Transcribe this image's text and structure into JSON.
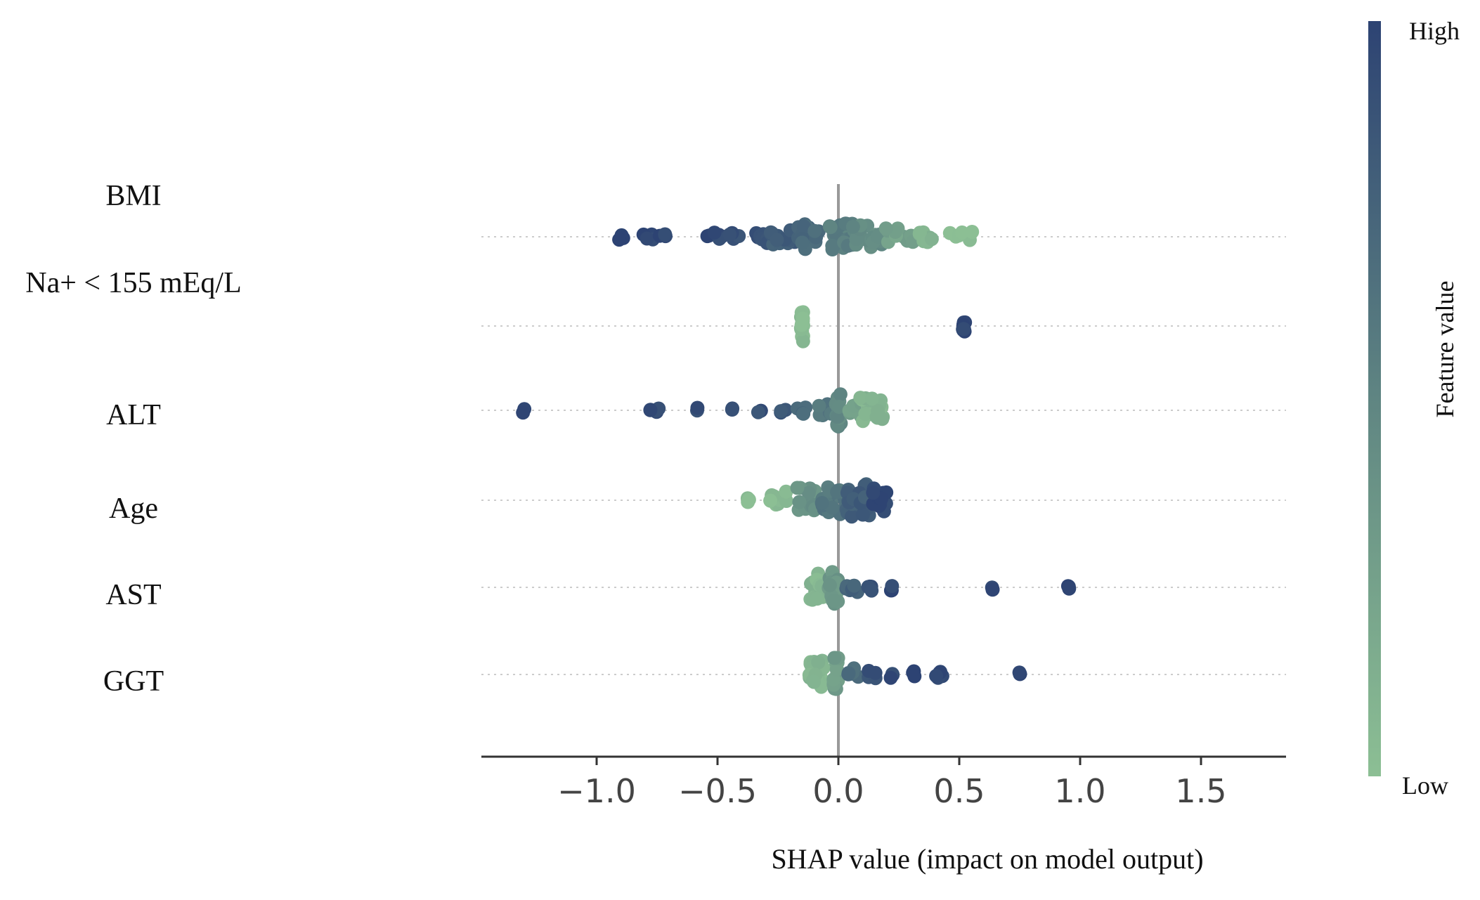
{
  "chart_data": {
    "type": "scatter",
    "subtype": "shap-beeswarm",
    "xlabel": "SHAP value (impact on model output)",
    "xlim": [
      -1.5,
      1.85
    ],
    "xticks": [
      -1.0,
      -0.5,
      0.0,
      0.5,
      1.0,
      1.5
    ],
    "xtick_labels": [
      "−1.0",
      "−0.5",
      "0.0",
      "0.5",
      "1.0",
      "1.5"
    ],
    "features": [
      {
        "name": "BMI",
        "clusters": [
          {
            "x": -0.9,
            "n": 3,
            "spread": 0.03,
            "w": 0.01,
            "value": 0.98
          },
          {
            "x": -0.79,
            "n": 5,
            "spread": 0.03,
            "w": 0.03,
            "value": 0.97
          },
          {
            "x": -0.73,
            "n": 3,
            "spread": 0.03,
            "w": 0.02,
            "value": 0.96
          },
          {
            "x": -0.52,
            "n": 6,
            "spread": 0.04,
            "w": 0.04,
            "value": 0.95
          },
          {
            "x": -0.43,
            "n": 5,
            "spread": 0.04,
            "w": 0.02,
            "value": 0.92
          },
          {
            "x": -0.33,
            "n": 10,
            "spread": 0.05,
            "w": 0.06,
            "value": 0.88
          },
          {
            "x": -0.22,
            "n": 14,
            "spread": 0.07,
            "w": 0.06,
            "value": 0.8
          },
          {
            "x": -0.12,
            "n": 18,
            "spread": 0.1,
            "w": 0.06,
            "value": 0.7
          },
          {
            "x": 0.0,
            "n": 24,
            "spread": 0.11,
            "w": 0.06,
            "value": 0.55
          },
          {
            "x": 0.12,
            "n": 18,
            "spread": 0.1,
            "w": 0.06,
            "value": 0.45
          },
          {
            "x": 0.25,
            "n": 12,
            "spread": 0.07,
            "w": 0.06,
            "value": 0.25
          },
          {
            "x": 0.37,
            "n": 8,
            "spread": 0.05,
            "w": 0.04,
            "value": 0.12
          },
          {
            "x": 0.52,
            "n": 6,
            "spread": 0.04,
            "w": 0.06,
            "value": 0.02
          }
        ]
      },
      {
        "name": "Na+ < 155 mEq/L",
        "clusters": [
          {
            "x": -0.15,
            "n": 18,
            "spread": 0.13,
            "w": 0.005,
            "value": 0.02
          },
          {
            "x": 0.52,
            "n": 8,
            "spread": 0.05,
            "w": 0.005,
            "value": 0.98
          }
        ]
      },
      {
        "name": "ALT",
        "clusters": [
          {
            "x": -1.3,
            "n": 2,
            "spread": 0.02,
            "w": 0.005,
            "value": 0.98
          },
          {
            "x": -0.77,
            "n": 5,
            "spread": 0.02,
            "w": 0.03,
            "value": 0.96
          },
          {
            "x": -0.59,
            "n": 2,
            "spread": 0.02,
            "w": 0.01,
            "value": 0.94
          },
          {
            "x": -0.43,
            "n": 2,
            "spread": 0.02,
            "w": 0.01,
            "value": 0.92
          },
          {
            "x": -0.33,
            "n": 2,
            "spread": 0.02,
            "w": 0.01,
            "value": 0.9
          },
          {
            "x": -0.23,
            "n": 3,
            "spread": 0.03,
            "w": 0.02,
            "value": 0.85
          },
          {
            "x": -0.15,
            "n": 5,
            "spread": 0.04,
            "w": 0.02,
            "value": 0.72
          },
          {
            "x": -0.06,
            "n": 8,
            "spread": 0.05,
            "w": 0.03,
            "value": 0.6
          },
          {
            "x": 0.0,
            "n": 18,
            "spread": 0.13,
            "w": 0.01,
            "value": 0.45
          },
          {
            "x": 0.07,
            "n": 10,
            "spread": 0.06,
            "w": 0.03,
            "value": 0.25
          },
          {
            "x": 0.14,
            "n": 20,
            "spread": 0.1,
            "w": 0.05,
            "value": 0.08
          }
        ]
      },
      {
        "name": "Age",
        "clusters": [
          {
            "x": -0.37,
            "n": 3,
            "spread": 0.02,
            "w": 0.01,
            "value": 0.02
          },
          {
            "x": -0.25,
            "n": 10,
            "spread": 0.08,
            "w": 0.04,
            "value": 0.06
          },
          {
            "x": -0.12,
            "n": 16,
            "spread": 0.1,
            "w": 0.05,
            "value": 0.4
          },
          {
            "x": -0.02,
            "n": 22,
            "spread": 0.12,
            "w": 0.05,
            "value": 0.6
          },
          {
            "x": 0.08,
            "n": 24,
            "spread": 0.13,
            "w": 0.05,
            "value": 0.8
          },
          {
            "x": 0.17,
            "n": 14,
            "spread": 0.1,
            "w": 0.03,
            "value": 0.97
          }
        ]
      },
      {
        "name": "AST",
        "clusters": [
          {
            "x": -0.09,
            "n": 22,
            "spread": 0.11,
            "w": 0.03,
            "value": 0.08
          },
          {
            "x": -0.02,
            "n": 18,
            "spread": 0.14,
            "w": 0.02,
            "value": 0.35
          },
          {
            "x": 0.06,
            "n": 6,
            "spread": 0.05,
            "w": 0.03,
            "value": 0.75
          },
          {
            "x": 0.13,
            "n": 4,
            "spread": 0.03,
            "w": 0.01,
            "value": 0.93
          },
          {
            "x": 0.22,
            "n": 3,
            "spread": 0.03,
            "w": 0.005,
            "value": 0.96
          },
          {
            "x": 0.64,
            "n": 3,
            "spread": 0.02,
            "w": 0.005,
            "value": 0.98
          },
          {
            "x": 0.95,
            "n": 3,
            "spread": 0.02,
            "w": 0.005,
            "value": 0.98
          }
        ]
      },
      {
        "name": "GGT",
        "clusters": [
          {
            "x": -0.09,
            "n": 22,
            "spread": 0.11,
            "w": 0.03,
            "value": 0.08
          },
          {
            "x": -0.01,
            "n": 16,
            "spread": 0.14,
            "w": 0.01,
            "value": 0.3
          },
          {
            "x": 0.06,
            "n": 6,
            "spread": 0.05,
            "w": 0.03,
            "value": 0.7
          },
          {
            "x": 0.14,
            "n": 4,
            "spread": 0.03,
            "w": 0.02,
            "value": 0.9
          },
          {
            "x": 0.22,
            "n": 3,
            "spread": 0.03,
            "w": 0.005,
            "value": 0.94
          },
          {
            "x": 0.31,
            "n": 3,
            "spread": 0.03,
            "w": 0.005,
            "value": 0.96
          },
          {
            "x": 0.42,
            "n": 5,
            "spread": 0.03,
            "w": 0.02,
            "value": 0.97
          },
          {
            "x": 0.75,
            "n": 3,
            "spread": 0.02,
            "w": 0.005,
            "value": 0.98
          }
        ]
      }
    ],
    "colorbar": {
      "high_label": "High",
      "low_label": "Low",
      "title": "Feature value",
      "high_color": "#2d4373",
      "mid_color": "#5f8582",
      "low_color": "#8cbf94",
      "legend_position": "right"
    },
    "grid": "dotted-per-feature",
    "zero_line_color": "#999999"
  }
}
